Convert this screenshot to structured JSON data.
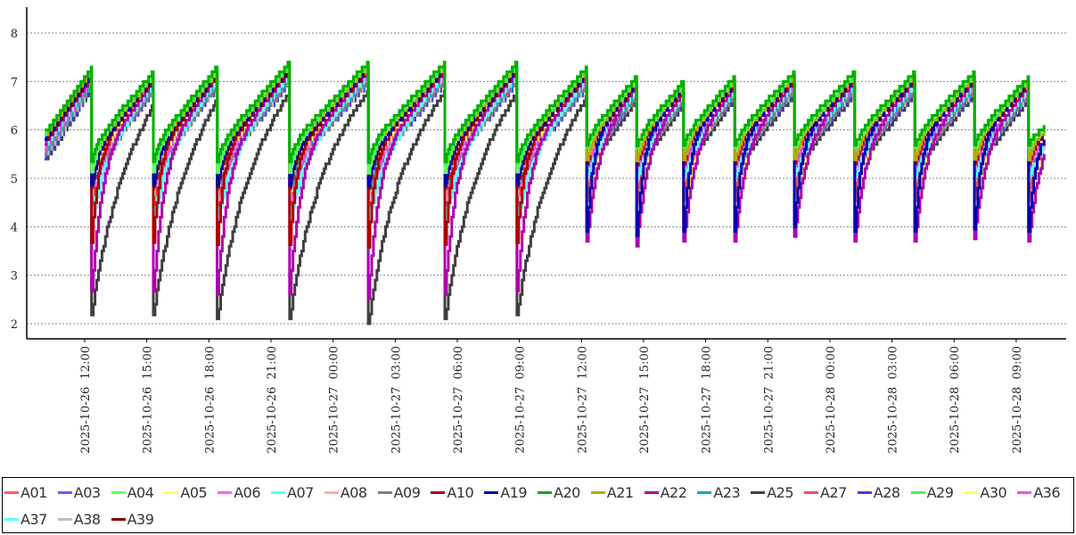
{
  "chart_data": {
    "type": "line",
    "title": "",
    "xlabel": "",
    "ylabel": "",
    "ylim": [
      1.7,
      8.5
    ],
    "yticks": [
      2,
      3,
      4,
      5,
      6,
      7,
      8
    ],
    "grid": true,
    "legend_position": "bottom",
    "x_range": [
      "2025-10-26 09:13",
      "2025-10-28 11:22"
    ],
    "x_ticks": [
      "2025-10-26  12:00",
      "2025-10-26  15:00",
      "2025-10-26  18:00",
      "2025-10-26  21:00",
      "2025-10-27  00:00",
      "2025-10-27  03:00",
      "2025-10-27  06:00",
      "2025-10-27  09:00",
      "2025-10-27  12:00",
      "2025-10-27  15:00",
      "2025-10-27  18:00",
      "2025-10-27  21:00",
      "2025-10-28  00:00",
      "2025-10-28  03:00",
      "2025-10-28  06:00",
      "2025-10-28  09:00"
    ],
    "data_start": "2025-10-26 10:04",
    "cycles": [
      {
        "end": "2025-10-26 12:20",
        "start_level": 5.95,
        "peak": 7.3,
        "trough": 2.18,
        "phase": 1
      },
      {
        "end": "2025-10-26 15:19",
        "start_level": 5.7,
        "peak": 7.2,
        "trough": 2.18,
        "phase": 1
      },
      {
        "end": "2025-10-26 18:24",
        "start_level": 5.7,
        "peak": 7.3,
        "trough": 2.1,
        "phase": 1
      },
      {
        "end": "2025-10-26 21:54",
        "start_level": 5.7,
        "peak": 7.4,
        "trough": 2.1,
        "phase": 1
      },
      {
        "end": "2025-10-27 01:42",
        "start_level": 5.7,
        "peak": 7.4,
        "trough": 2.0,
        "phase": 1
      },
      {
        "end": "2025-10-27 05:24",
        "start_level": 5.7,
        "peak": 7.4,
        "trough": 2.1,
        "phase": 1
      },
      {
        "end": "2025-10-27 08:53",
        "start_level": 5.7,
        "peak": 7.4,
        "trough": 2.18,
        "phase": 1
      },
      {
        "end": "2025-10-27 12:15",
        "start_level": 5.7,
        "peak": 7.3,
        "trough": 3.7,
        "phase": 2
      },
      {
        "end": "2025-10-27 14:40",
        "start_level": 5.9,
        "peak": 7.1,
        "trough": 3.6,
        "phase": 2
      },
      {
        "end": "2025-10-27 16:56",
        "start_level": 5.9,
        "peak": 7.0,
        "trough": 3.7,
        "phase": 2
      },
      {
        "end": "2025-10-27 19:24",
        "start_level": 5.9,
        "peak": 7.1,
        "trough": 3.7,
        "phase": 2
      },
      {
        "end": "2025-10-27 22:17",
        "start_level": 5.9,
        "peak": 7.2,
        "trough": 3.8,
        "phase": 2
      },
      {
        "end": "2025-10-28 01:12",
        "start_level": 5.9,
        "peak": 7.2,
        "trough": 3.7,
        "phase": 2
      },
      {
        "end": "2025-10-28 04:06",
        "start_level": 5.9,
        "peak": 7.2,
        "trough": 3.7,
        "phase": 2
      },
      {
        "end": "2025-10-28 06:59",
        "start_level": 5.9,
        "peak": 7.2,
        "trough": 3.75,
        "phase": 2
      },
      {
        "end": "2025-10-28 09:36",
        "start_level": 5.9,
        "peak": 7.1,
        "trough": 3.7,
        "phase": 2
      },
      {
        "end": "2025-10-28 10:25",
        "start_level": 5.9,
        "peak": 6.1,
        "trough": null,
        "phase": 2
      }
    ],
    "series": [
      {
        "name": "A01",
        "color": "#ff5f5f",
        "offset": 0.5,
        "dip1": 0.35,
        "dip2": 0.5,
        "recovery_h": 0.3
      },
      {
        "name": "A03",
        "color": "#5f5fff",
        "offset": 0.55,
        "dip1": 0.1,
        "dip2": 0.1,
        "recovery_h": 0.4
      },
      {
        "name": "A04",
        "color": "#5fff5f",
        "offset": 0.05,
        "dip1": 0.15,
        "dip2": 0.1,
        "recovery_h": 0.3
      },
      {
        "name": "A05",
        "color": "#ffff5f",
        "offset": 0.3,
        "dip1": 0.1,
        "dip2": 0.8,
        "recovery_h": 0.5
      },
      {
        "name": "A06",
        "color": "#ff5fff",
        "offset": 0.35,
        "dip1": 0.45,
        "dip2": 0.2,
        "recovery_h": 0.3
      },
      {
        "name": "A07",
        "color": "#5fffff",
        "offset": 0.3,
        "dip1": 0.4,
        "dip2": 0.3,
        "recovery_h": 0.8
      },
      {
        "name": "A08",
        "color": "#ffafaf",
        "offset": 0.4,
        "dip1": 0.1,
        "dip2": 0.1,
        "recovery_h": 0.3
      },
      {
        "name": "A09",
        "color": "#7f7f7f",
        "offset": 0.45,
        "dip1": 0.15,
        "dip2": 0.15,
        "recovery_h": 1.0
      },
      {
        "name": "A10",
        "color": "#af0000",
        "offset": 0.2,
        "dip1": 0.55,
        "dip2": 0.2,
        "recovery_h": 0.3
      },
      {
        "name": "A19",
        "color": "#0000af",
        "offset": 0.15,
        "dip1": 0.2,
        "dip2": 0.9,
        "recovery_h": 0.3
      },
      {
        "name": "A20",
        "color": "#00af00",
        "offset": 0.0,
        "dip1": 0.1,
        "dip2": 0.1,
        "recovery_h": 0.3
      },
      {
        "name": "A21",
        "color": "#afaf00",
        "offset": 0.1,
        "dip1": 0.1,
        "dip2": 0.2,
        "recovery_h": 0.3
      },
      {
        "name": "A22",
        "color": "#af00af",
        "offset": 0.25,
        "dip1": 0.85,
        "dip2": 1.0,
        "recovery_h": 0.5
      },
      {
        "name": "A23",
        "color": "#00afaf",
        "offset": 0.4,
        "dip1": 0.1,
        "dip2": 0.1,
        "recovery_h": 0.4
      },
      {
        "name": "A25",
        "color": "#3f3f3f",
        "offset": 0.6,
        "dip1": 1.0,
        "dip2": 0.1,
        "recovery_h": 1.2
      },
      {
        "name": "A27",
        "color": "#ef4f4f",
        "offset": 0.5,
        "dip1": 0.3,
        "dip2": 0.4,
        "recovery_h": 0.3
      },
      {
        "name": "A28",
        "color": "#3f3fef",
        "offset": 0.55,
        "dip1": 0.1,
        "dip2": 0.1,
        "recovery_h": 0.4
      },
      {
        "name": "A29",
        "color": "#4fef4f",
        "offset": 0.05,
        "dip1": 0.1,
        "dip2": 0.1,
        "recovery_h": 0.3
      },
      {
        "name": "A30",
        "color": "#ffff5f",
        "offset": 0.3,
        "dip1": 0.1,
        "dip2": 0.85,
        "recovery_h": 0.5
      },
      {
        "name": "A36",
        "color": "#ef4fef",
        "offset": 0.35,
        "dip1": 0.5,
        "dip2": 0.2,
        "recovery_h": 0.3
      },
      {
        "name": "A37",
        "color": "#5fffff",
        "offset": 0.3,
        "dip1": 0.35,
        "dip2": 0.3,
        "recovery_h": 0.8
      },
      {
        "name": "A38",
        "color": "#bfbfbf",
        "offset": 0.5,
        "dip1": 0.1,
        "dip2": 0.1,
        "recovery_h": 0.4
      },
      {
        "name": "A39",
        "color": "#7f0000",
        "offset": 0.2,
        "dip1": 0.2,
        "dip2": 0.15,
        "recovery_h": 0.3
      }
    ]
  }
}
